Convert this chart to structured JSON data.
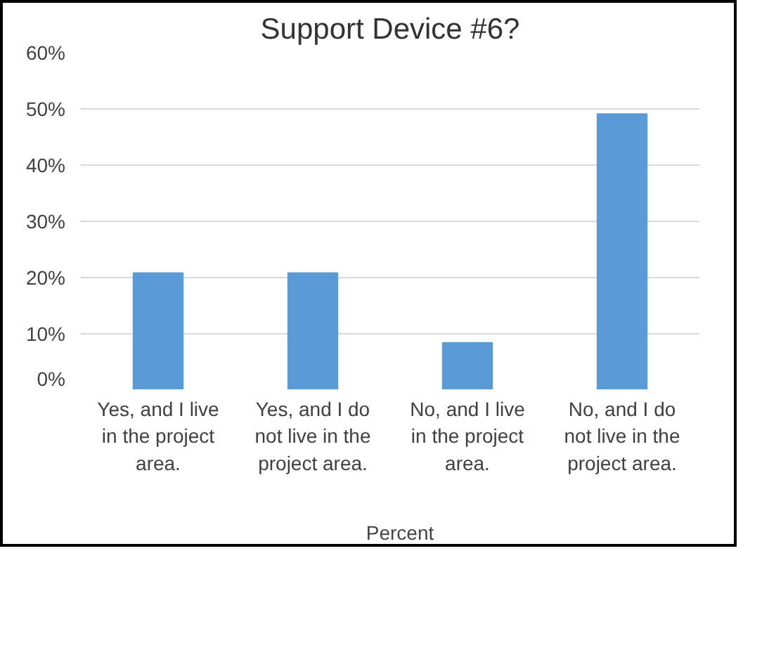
{
  "chart_data": {
    "type": "bar",
    "title": "Support Device #6?",
    "categories": [
      "Yes, and I live in the project area.",
      "Yes, and I do not live in the project area.",
      "No, and I live in the project area.",
      "No, and I do not live in the project area."
    ],
    "series": [
      {
        "name": "Percent",
        "color": "#5b9bd5",
        "values": [
          20.8,
          20.8,
          8.4,
          49.1
        ]
      }
    ],
    "ylim": [
      0,
      60
    ],
    "yticks": [
      {
        "value": 0,
        "label": "0%"
      },
      {
        "value": 10,
        "label": "10%"
      },
      {
        "value": 20,
        "label": "20%"
      },
      {
        "value": 30,
        "label": "30%"
      },
      {
        "value": 40,
        "label": "40%"
      },
      {
        "value": 50,
        "label": "50%"
      },
      {
        "value": 60,
        "label": "60%"
      }
    ],
    "grid": "y",
    "legend": "bottom"
  }
}
